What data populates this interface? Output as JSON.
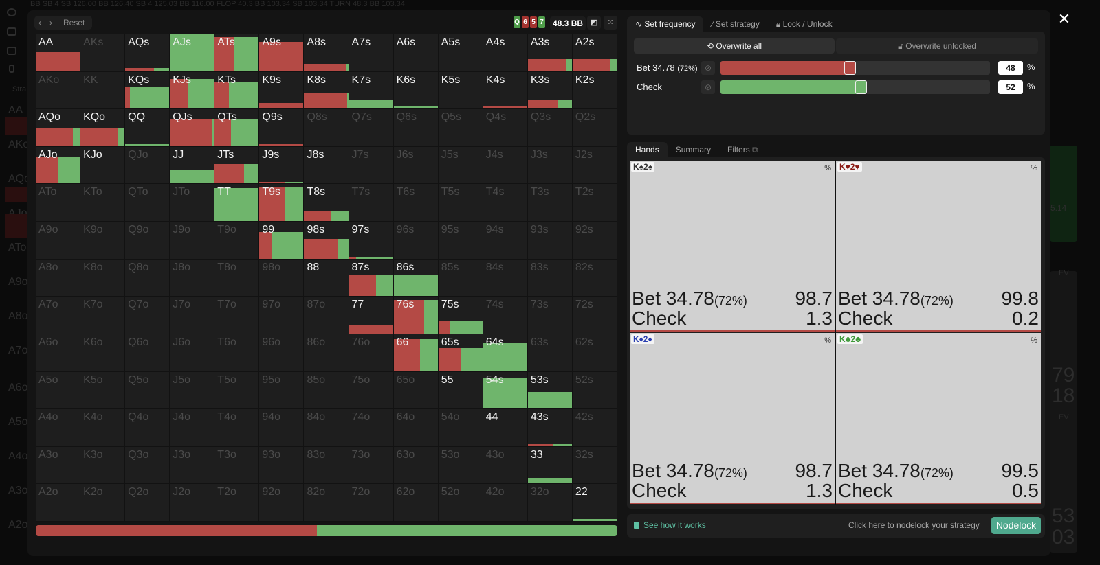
{
  "background": {
    "topbar_text": "BB  SB         4  SB  126.00   BB  126.40   SB 4  125.03   BB  116.00   FLOP          40.3   BB   103.34   SB   103.34   TURN   48.3   BB   103.34",
    "sidebar_labels": [
      "Stra",
      "AA",
      "AKo",
      "AQo",
      "AJo",
      "ATo",
      "A9o",
      "A8o",
      "A7o",
      "A6o",
      "A5o",
      "A4o",
      "A3o",
      "A2o"
    ],
    "right_numbers": [
      "5.14",
      "79",
      "18",
      "53",
      "03"
    ],
    "right_ev_labels": [
      "EV",
      "EV"
    ]
  },
  "toolbar": {
    "prev_icon": "‹",
    "next_icon": "›",
    "reset_label": "Reset",
    "board": [
      {
        "rank": "Q",
        "color": "#4f9d4a"
      },
      {
        "rank": "6",
        "color": "#a3332f"
      },
      {
        "rank": "5",
        "color": "#a3332f"
      },
      {
        "rank": "7",
        "color": "#4f9d4a"
      }
    ],
    "pot": "48.3 BB",
    "contrast_icon": "◩",
    "grid_icon": "⁙"
  },
  "colors": {
    "bet": "#b44a45",
    "check": "#6fb56c",
    "accent": "#4fa98e"
  },
  "range_grid": {
    "ranks": [
      "A",
      "K",
      "Q",
      "J",
      "T",
      "9",
      "8",
      "7",
      "6",
      "5",
      "4",
      "3",
      "2"
    ],
    "cells": [
      [
        {
          "h": "AA",
          "f": 0.52,
          "r": 1
        },
        {
          "h": "AKs",
          "f": 0,
          "r": 0,
          "dim": true
        },
        {
          "h": "AQs",
          "f": 0.08,
          "r": 0.66
        },
        {
          "h": "AJs",
          "f": 1,
          "r": 0
        },
        {
          "h": "ATs",
          "f": 0.92,
          "r": 0.44
        },
        {
          "h": "A9s",
          "f": 0.8,
          "r": 1
        },
        {
          "h": "A8s",
          "f": 0.2,
          "r": 0.96
        },
        {
          "h": "A7s",
          "f": 0,
          "r": 0
        },
        {
          "h": "A6s",
          "f": 0,
          "r": 0
        },
        {
          "h": "A5s",
          "f": 0,
          "r": 0
        },
        {
          "h": "A4s",
          "f": 0,
          "r": 0
        },
        {
          "h": "A3s",
          "f": 0.32,
          "r": 0.86
        },
        {
          "h": "A2s",
          "f": 0.32,
          "r": 0.86
        }
      ],
      [
        {
          "h": "AKo",
          "f": 0,
          "r": 0,
          "dim": true
        },
        {
          "h": "KK",
          "f": 0,
          "r": 0,
          "dim": true
        },
        {
          "h": "KQs",
          "f": 0.58,
          "r": 0.1
        },
        {
          "h": "KJs",
          "f": 0.8,
          "r": 0.41
        },
        {
          "h": "KTs",
          "f": 0.73,
          "r": 0.33
        },
        {
          "h": "K9s",
          "f": 0.16,
          "r": 1
        },
        {
          "h": "K8s",
          "f": 0.43,
          "r": 0.98
        },
        {
          "h": "K7s",
          "f": 0.25,
          "r": 0
        },
        {
          "h": "K6s",
          "f": 0.06,
          "r": 0
        },
        {
          "h": "K5s",
          "f": 0.02,
          "r": 0.5
        },
        {
          "h": "K4s",
          "f": 0.07,
          "r": 1
        },
        {
          "h": "K3s",
          "f": 0.24,
          "r": 0.67
        },
        {
          "h": "K2s",
          "f": 0,
          "r": 0
        }
      ],
      [
        {
          "h": "AQo",
          "f": 0.5,
          "r": 0.84
        },
        {
          "h": "KQo",
          "f": 0.48,
          "r": 0.86
        },
        {
          "h": "QQ",
          "f": 0.05,
          "r": 0
        },
        {
          "h": "QJs",
          "f": 0.72,
          "r": 0.97
        },
        {
          "h": "QTs",
          "f": 0.73,
          "r": 0.37
        },
        {
          "h": "Q9s",
          "f": 0.06,
          "r": 1
        },
        {
          "h": "Q8s",
          "f": 0,
          "r": 0,
          "dim": true
        },
        {
          "h": "Q7s",
          "f": 0,
          "r": 0,
          "dim": true
        },
        {
          "h": "Q6s",
          "f": 0,
          "r": 0,
          "dim": true
        },
        {
          "h": "Q5s",
          "f": 0,
          "r": 0,
          "dim": true
        },
        {
          "h": "Q4s",
          "f": 0,
          "r": 0,
          "dim": true
        },
        {
          "h": "Q3s",
          "f": 0,
          "r": 0,
          "dim": true
        },
        {
          "h": "Q2s",
          "f": 0,
          "r": 0,
          "dim": true
        }
      ],
      [
        {
          "h": "AJo",
          "f": 0.72,
          "r": 0.5
        },
        {
          "h": "KJo",
          "f": 0,
          "r": 0
        },
        {
          "h": "QJo",
          "f": 0,
          "r": 0,
          "dim": true
        },
        {
          "h": "JJ",
          "f": 0.36,
          "r": 0
        },
        {
          "h": "JTs",
          "f": 0.54,
          "r": 0.67
        },
        {
          "h": "J9s",
          "f": 0.05,
          "r": 0.57
        },
        {
          "h": "J8s",
          "f": 0,
          "r": 0
        },
        {
          "h": "J7s",
          "f": 0,
          "r": 0,
          "dim": true
        },
        {
          "h": "J6s",
          "f": 0,
          "r": 0,
          "dim": true
        },
        {
          "h": "J5s",
          "f": 0,
          "r": 0,
          "dim": true
        },
        {
          "h": "J4s",
          "f": 0,
          "r": 0,
          "dim": true
        },
        {
          "h": "J3s",
          "f": 0,
          "r": 0,
          "dim": true
        },
        {
          "h": "J2s",
          "f": 0,
          "r": 0,
          "dim": true
        }
      ],
      [
        {
          "h": "ATo",
          "f": 0,
          "r": 0,
          "dim": true
        },
        {
          "h": "KTo",
          "f": 0,
          "r": 0,
          "dim": true
        },
        {
          "h": "QTo",
          "f": 0,
          "r": 0,
          "dim": true
        },
        {
          "h": "JTo",
          "f": 0,
          "r": 0,
          "dim": true
        },
        {
          "h": "TT",
          "f": 0.9,
          "r": 0
        },
        {
          "h": "T9s",
          "f": 0.94,
          "r": 0.58
        },
        {
          "h": "T8s",
          "f": 0.27,
          "r": 0.61
        },
        {
          "h": "T7s",
          "f": 0,
          "r": 0,
          "dim": true
        },
        {
          "h": "T6s",
          "f": 0,
          "r": 0,
          "dim": true
        },
        {
          "h": "T5s",
          "f": 0,
          "r": 0,
          "dim": true
        },
        {
          "h": "T4s",
          "f": 0,
          "r": 0,
          "dim": true
        },
        {
          "h": "T3s",
          "f": 0,
          "r": 0,
          "dim": true
        },
        {
          "h": "T2s",
          "f": 0,
          "r": 0,
          "dim": true
        }
      ],
      [
        {
          "h": "A9o",
          "f": 0,
          "r": 0,
          "dim": true
        },
        {
          "h": "K9o",
          "f": 0,
          "r": 0,
          "dim": true
        },
        {
          "h": "Q9o",
          "f": 0,
          "r": 0,
          "dim": true
        },
        {
          "h": "J9o",
          "f": 0,
          "r": 0,
          "dim": true
        },
        {
          "h": "T9o",
          "f": 0,
          "r": 0,
          "dim": true
        },
        {
          "h": "99",
          "f": 0.72,
          "r": 0.27
        },
        {
          "h": "98s",
          "f": 0.54,
          "r": 0.77
        },
        {
          "h": "97s",
          "f": 0.04,
          "r": 0.16
        },
        {
          "h": "96s",
          "f": 0,
          "r": 0,
          "dim": true
        },
        {
          "h": "95s",
          "f": 0,
          "r": 0,
          "dim": true
        },
        {
          "h": "94s",
          "f": 0,
          "r": 0,
          "dim": true
        },
        {
          "h": "93s",
          "f": 0,
          "r": 0,
          "dim": true
        },
        {
          "h": "92s",
          "f": 0,
          "r": 0,
          "dim": true
        }
      ],
      [
        {
          "h": "A8o",
          "f": 0,
          "r": 0,
          "dim": true
        },
        {
          "h": "K8o",
          "f": 0,
          "r": 0,
          "dim": true
        },
        {
          "h": "Q8o",
          "f": 0,
          "r": 0,
          "dim": true
        },
        {
          "h": "J8o",
          "f": 0,
          "r": 0,
          "dim": true
        },
        {
          "h": "T8o",
          "f": 0,
          "r": 0,
          "dim": true
        },
        {
          "h": "98o",
          "f": 0,
          "r": 0,
          "dim": true
        },
        {
          "h": "88",
          "f": 0,
          "r": 0
        },
        {
          "h": "87s",
          "f": 0.58,
          "r": 0.61
        },
        {
          "h": "86s",
          "f": 0.56,
          "r": 0
        },
        {
          "h": "85s",
          "f": 0,
          "r": 0,
          "dim": true
        },
        {
          "h": "84s",
          "f": 0,
          "r": 0,
          "dim": true
        },
        {
          "h": "83s",
          "f": 0,
          "r": 0,
          "dim": true
        },
        {
          "h": "82s",
          "f": 0,
          "r": 0,
          "dim": true
        }
      ],
      [
        {
          "h": "A7o",
          "f": 0,
          "r": 0,
          "dim": true
        },
        {
          "h": "K7o",
          "f": 0,
          "r": 0,
          "dim": true
        },
        {
          "h": "Q7o",
          "f": 0,
          "r": 0,
          "dim": true
        },
        {
          "h": "J7o",
          "f": 0,
          "r": 0,
          "dim": true
        },
        {
          "h": "T7o",
          "f": 0,
          "r": 0,
          "dim": true
        },
        {
          "h": "97o",
          "f": 0,
          "r": 0,
          "dim": true
        },
        {
          "h": "87o",
          "f": 0,
          "r": 0,
          "dim": true
        },
        {
          "h": "77",
          "f": 0.22,
          "r": 1
        },
        {
          "h": "76s",
          "f": 0.92,
          "r": 0.7
        },
        {
          "h": "75s",
          "f": 0.35,
          "r": 0.25
        },
        {
          "h": "74s",
          "f": 0,
          "r": 0,
          "dim": true
        },
        {
          "h": "73s",
          "f": 0,
          "r": 0,
          "dim": true
        },
        {
          "h": "72s",
          "f": 0,
          "r": 0,
          "dim": true
        }
      ],
      [
        {
          "h": "A6o",
          "f": 0,
          "r": 0,
          "dim": true
        },
        {
          "h": "K6o",
          "f": 0,
          "r": 0,
          "dim": true
        },
        {
          "h": "Q6o",
          "f": 0,
          "r": 0,
          "dim": true
        },
        {
          "h": "J6o",
          "f": 0,
          "r": 0,
          "dim": true
        },
        {
          "h": "T6o",
          "f": 0,
          "r": 0,
          "dim": true
        },
        {
          "h": "96o",
          "f": 0,
          "r": 0,
          "dim": true
        },
        {
          "h": "86o",
          "f": 0,
          "r": 0,
          "dim": true
        },
        {
          "h": "76o",
          "f": 0,
          "r": 0,
          "dim": true
        },
        {
          "h": "66",
          "f": 0.86,
          "r": 0.6
        },
        {
          "h": "65s",
          "f": 0.62,
          "r": 0.5
        },
        {
          "h": "64s",
          "f": 0.78,
          "r": 0
        },
        {
          "h": "63s",
          "f": 0,
          "r": 0,
          "dim": true
        },
        {
          "h": "62s",
          "f": 0,
          "r": 0,
          "dim": true
        }
      ],
      [
        {
          "h": "A5o",
          "f": 0,
          "r": 0,
          "dim": true
        },
        {
          "h": "K5o",
          "f": 0,
          "r": 0,
          "dim": true
        },
        {
          "h": "Q5o",
          "f": 0,
          "r": 0,
          "dim": true
        },
        {
          "h": "J5o",
          "f": 0,
          "r": 0,
          "dim": true
        },
        {
          "h": "T5o",
          "f": 0,
          "r": 0,
          "dim": true
        },
        {
          "h": "95o",
          "f": 0,
          "r": 0,
          "dim": true
        },
        {
          "h": "85o",
          "f": 0,
          "r": 0,
          "dim": true
        },
        {
          "h": "75o",
          "f": 0,
          "r": 0,
          "dim": true
        },
        {
          "h": "65o",
          "f": 0,
          "r": 0,
          "dim": true
        },
        {
          "h": "55",
          "f": 0.03,
          "r": 0.4
        },
        {
          "h": "54s",
          "f": 0.84,
          "r": 0
        },
        {
          "h": "53s",
          "f": 0.45,
          "r": 0
        },
        {
          "h": "52s",
          "f": 0,
          "r": 0,
          "dim": true
        }
      ],
      [
        {
          "h": "A4o",
          "f": 0,
          "r": 0,
          "dim": true
        },
        {
          "h": "K4o",
          "f": 0,
          "r": 0,
          "dim": true
        },
        {
          "h": "Q4o",
          "f": 0,
          "r": 0,
          "dim": true
        },
        {
          "h": "J4o",
          "f": 0,
          "r": 0,
          "dim": true
        },
        {
          "h": "T4o",
          "f": 0,
          "r": 0,
          "dim": true
        },
        {
          "h": "94o",
          "f": 0,
          "r": 0,
          "dim": true
        },
        {
          "h": "84o",
          "f": 0,
          "r": 0,
          "dim": true
        },
        {
          "h": "74o",
          "f": 0,
          "r": 0,
          "dim": true
        },
        {
          "h": "64o",
          "f": 0,
          "r": 0,
          "dim": true
        },
        {
          "h": "54o",
          "f": 0,
          "r": 0,
          "dim": true
        },
        {
          "h": "44",
          "f": 0,
          "r": 0
        },
        {
          "h": "43s",
          "f": 0.05,
          "r": 0.56
        },
        {
          "h": "42s",
          "f": 0,
          "r": 0,
          "dim": true
        }
      ],
      [
        {
          "h": "A3o",
          "f": 0,
          "r": 0,
          "dim": true
        },
        {
          "h": "K3o",
          "f": 0,
          "r": 0,
          "dim": true
        },
        {
          "h": "Q3o",
          "f": 0,
          "r": 0,
          "dim": true
        },
        {
          "h": "J3o",
          "f": 0,
          "r": 0,
          "dim": true
        },
        {
          "h": "T3o",
          "f": 0,
          "r": 0,
          "dim": true
        },
        {
          "h": "93o",
          "f": 0,
          "r": 0,
          "dim": true
        },
        {
          "h": "83o",
          "f": 0,
          "r": 0,
          "dim": true
        },
        {
          "h": "73o",
          "f": 0,
          "r": 0,
          "dim": true
        },
        {
          "h": "63o",
          "f": 0,
          "r": 0,
          "dim": true
        },
        {
          "h": "53o",
          "f": 0,
          "r": 0,
          "dim": true
        },
        {
          "h": "43o",
          "f": 0,
          "r": 0,
          "dim": true
        },
        {
          "h": "33",
          "f": 0.15,
          "r": 0
        },
        {
          "h": "32s",
          "f": 0,
          "r": 0,
          "dim": true
        }
      ],
      [
        {
          "h": "A2o",
          "f": 0,
          "r": 0,
          "dim": true
        },
        {
          "h": "K2o",
          "f": 0,
          "r": 0,
          "dim": true
        },
        {
          "h": "Q2o",
          "f": 0,
          "r": 0,
          "dim": true
        },
        {
          "h": "J2o",
          "f": 0,
          "r": 0,
          "dim": true
        },
        {
          "h": "T2o",
          "f": 0,
          "r": 0,
          "dim": true
        },
        {
          "h": "92o",
          "f": 0,
          "r": 0,
          "dim": true
        },
        {
          "h": "82o",
          "f": 0,
          "r": 0,
          "dim": true
        },
        {
          "h": "72o",
          "f": 0,
          "r": 0,
          "dim": true
        },
        {
          "h": "62o",
          "f": 0,
          "r": 0,
          "dim": true
        },
        {
          "h": "52o",
          "f": 0,
          "r": 0,
          "dim": true
        },
        {
          "h": "42o",
          "f": 0,
          "r": 0,
          "dim": true
        },
        {
          "h": "32o",
          "f": 0,
          "r": 0,
          "dim": true
        },
        {
          "h": "22",
          "f": 0.06,
          "r": 0
        }
      ]
    ],
    "summary": {
      "bet_pct": 48.4,
      "check_pct": 51.6
    }
  },
  "strategy_panel": {
    "tabs": [
      {
        "icon": "∿",
        "label": "Set frequency",
        "active": true
      },
      {
        "icon": "⁄",
        "label": "Set strategy",
        "active": false
      },
      {
        "icon": "🔒︎",
        "label": "Lock / Unlock",
        "active": false
      }
    ],
    "overwrite_all": "⟲ Overwrite all",
    "overwrite_unlocked": "🔓︎ Overwrite unlocked",
    "actions": [
      {
        "name": "Bet 34.78",
        "sub": "(72%)",
        "value": "48",
        "pct": 48,
        "color": "#b44a45"
      },
      {
        "name": "Check",
        "sub": "",
        "value": "52",
        "pct": 52,
        "color": "#6fb56c"
      }
    ],
    "percent_sign": "%",
    "block_icon": "⊘"
  },
  "hands_panel": {
    "tabs": [
      {
        "label": "Hands",
        "active": true
      },
      {
        "label": "Summary",
        "active": false
      },
      {
        "label": "Filters",
        "active": false,
        "icon": "⧉"
      }
    ],
    "combos": [
      {
        "label": "K♠2♠",
        "color": "#333333",
        "pct_label": "%",
        "bet_label": "Bet 34.78",
        "bet_sub": "(72%)",
        "bet": "98.7",
        "check_label": "Check",
        "check": "1.3"
      },
      {
        "label": "K♥2♥",
        "color": "#8a1a14",
        "pct_label": "%",
        "bet_label": "Bet 34.78",
        "bet_sub": "(72%)",
        "bet": "99.8",
        "check_label": "Check",
        "check": "0.2"
      },
      {
        "label": "K♦2♦",
        "color": "#2a3fb0",
        "pct_label": "%",
        "bet_label": "Bet 34.78",
        "bet_sub": "(72%)",
        "bet": "98.7",
        "check_label": "Check",
        "check": "1.3"
      },
      {
        "label": "K♣2♣",
        "color": "#3f9a3a",
        "pct_label": "%",
        "bet_label": "Bet 34.78",
        "bet_sub": "(72%)",
        "bet": "99.5",
        "check_label": "Check",
        "check": "0.5"
      }
    ]
  },
  "footer": {
    "see_how": "See how it works",
    "hint": "Click here to nodelock your strategy",
    "nodelock": "Nodelock"
  },
  "close_icon": "✕"
}
